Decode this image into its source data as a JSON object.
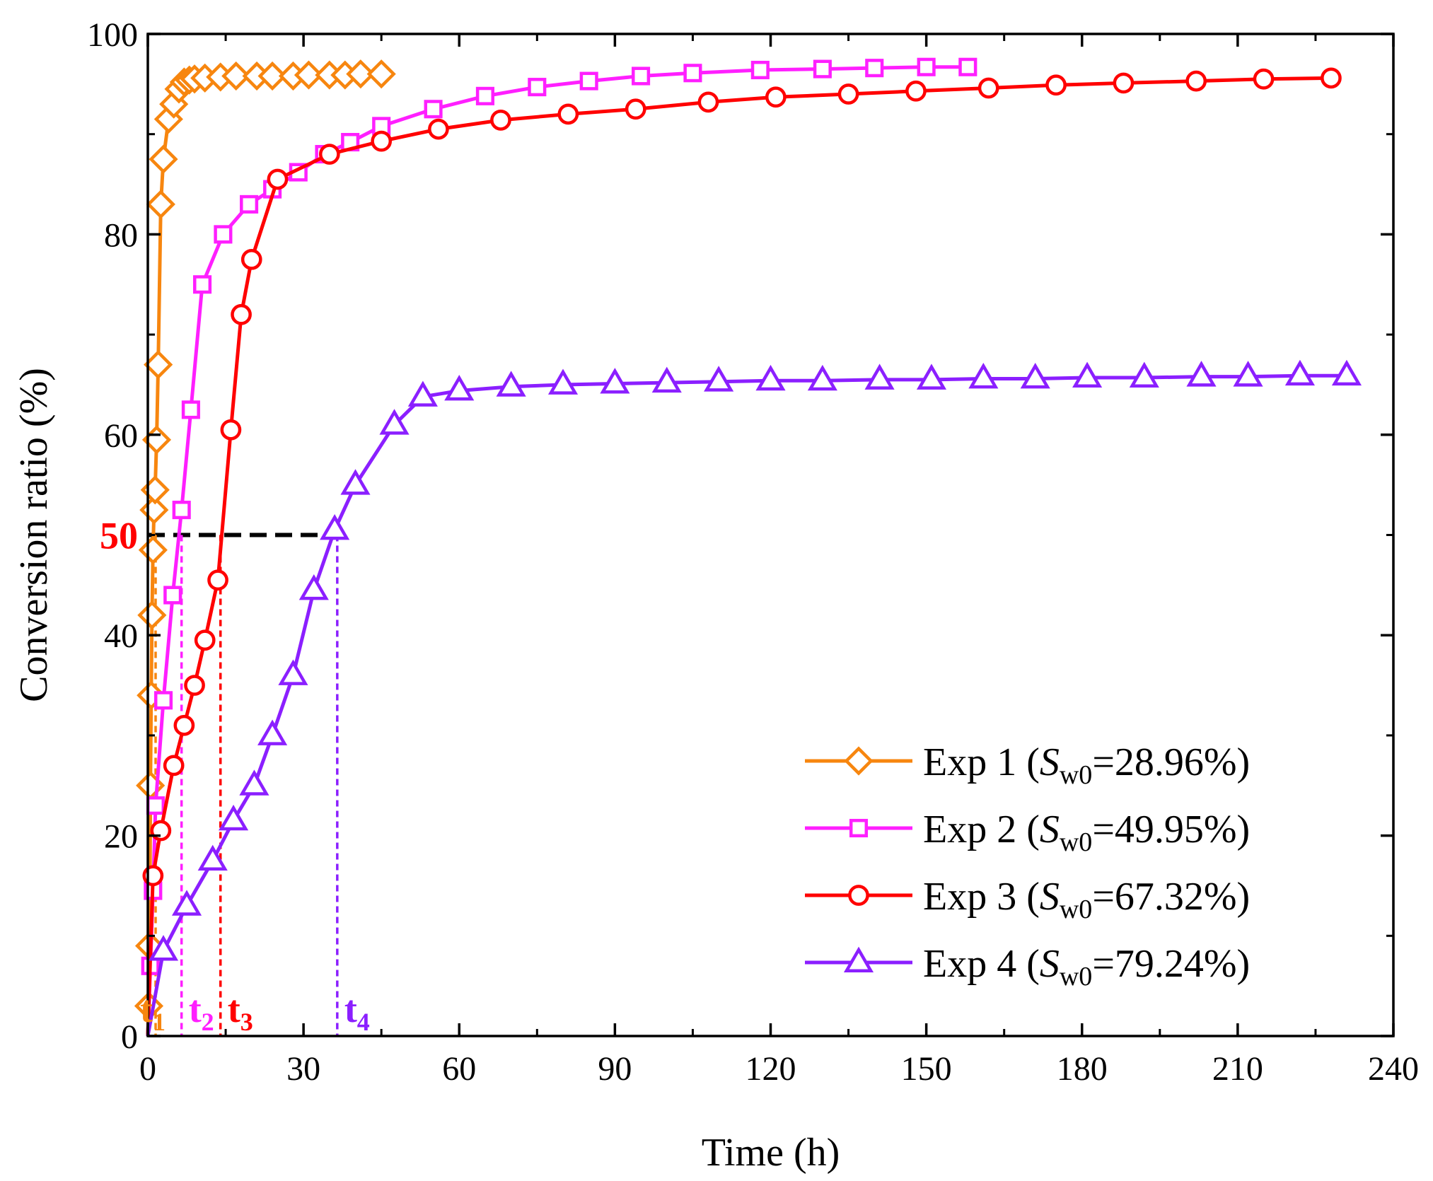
{
  "chart_data": {
    "type": "line",
    "xlabel": "Time (h)",
    "ylabel": "Conversion ratio (%)",
    "xlim": [
      0,
      240
    ],
    "ylim": [
      0,
      100
    ],
    "xticks": [
      0,
      30,
      60,
      90,
      120,
      150,
      180,
      210,
      240
    ],
    "yticks": [
      0,
      20,
      40,
      60,
      80,
      100
    ],
    "grid": false,
    "legend_position": "bottom-right",
    "series": [
      {
        "name": "Exp 1",
        "swlabel_main": "Exp 1 (",
        "sym": "S",
        "sub": "w0",
        "tail": "=28.96%)",
        "color": "#F7860F",
        "marker": "diamond",
        "x": [
          0,
          0.2,
          0.35,
          0.5,
          0.65,
          0.8,
          1.0,
          1.2,
          1.4,
          1.7,
          2.0,
          2.5,
          3.0,
          4.0,
          5.0,
          6.0,
          7.0,
          8.0,
          9.0,
          11.0,
          14.0,
          17.0,
          21.0,
          24.0,
          28.0,
          31.0,
          35.0,
          38.0,
          41.0,
          45.0
        ],
        "y": [
          0,
          3,
          9,
          25,
          34,
          42,
          48.5,
          52.5,
          54.5,
          59.5,
          67,
          83,
          87.5,
          91.5,
          93,
          94.5,
          95.2,
          95.4,
          95.5,
          95.6,
          95.7,
          95.8,
          95.8,
          95.8,
          95.8,
          95.9,
          95.9,
          95.9,
          96.0,
          96.0
        ]
      },
      {
        "name": "Exp 2",
        "swlabel_main": "Exp 2 (",
        "sym": "S",
        "sub": "w0",
        "tail": "=49.95%)",
        "color": "#FF1FFF",
        "marker": "square",
        "x": [
          0,
          0.5,
          1.0,
          1.5,
          3.0,
          4.8,
          6.5,
          8.3,
          10.5,
          14.5,
          19.5,
          24.0,
          29.0,
          34.0,
          39.0,
          45.0,
          55.0,
          65.0,
          75.0,
          85.0,
          95.0,
          105.0,
          118.0,
          130.0,
          140.0,
          150.0,
          158.0
        ],
        "y": [
          0,
          7,
          14.5,
          23,
          33.5,
          44,
          52.5,
          62.5,
          75,
          80,
          83,
          84.5,
          86.2,
          88,
          89.2,
          90.8,
          92.5,
          93.8,
          94.7,
          95.3,
          95.8,
          96.1,
          96.4,
          96.5,
          96.6,
          96.7,
          96.7
        ]
      },
      {
        "name": "Exp 3",
        "swlabel_main": "Exp 3 (",
        "sym": "S",
        "sub": "w0",
        "tail": "=67.32%)",
        "color": "#FF0000",
        "marker": "circle",
        "x": [
          0,
          1.0,
          2.5,
          5.0,
          7.0,
          9.0,
          11.0,
          13.5,
          16.0,
          18.0,
          20.0,
          25.0,
          35.0,
          45.0,
          56.0,
          68.0,
          81.0,
          94.0,
          108.0,
          121.0,
          135.0,
          148.0,
          162.0,
          175.0,
          188.0,
          202.0,
          215.0,
          228.0
        ],
        "y": [
          0,
          16,
          20.5,
          27,
          31,
          35,
          39.5,
          45.5,
          60.5,
          72,
          77.5,
          85.5,
          88,
          89.3,
          90.5,
          91.4,
          92,
          92.5,
          93.2,
          93.7,
          94.0,
          94.3,
          94.6,
          94.9,
          95.1,
          95.3,
          95.5,
          95.6
        ]
      },
      {
        "name": "Exp 4",
        "swlabel_main": "Exp 4 (",
        "sym": "S",
        "sub": "w0",
        "tail": "=79.24%)",
        "color": "#8B1FFF",
        "marker": "triangle",
        "x": [
          0,
          3.0,
          7.5,
          12.5,
          16.5,
          20.5,
          24.0,
          28.0,
          32.0,
          36.0,
          40.0,
          47.5,
          53.0,
          60.0,
          70.0,
          80.0,
          90.0,
          100.0,
          110.0,
          120.0,
          130.0,
          141.0,
          151.0,
          161.0,
          171.0,
          181.0,
          192.0,
          203.0,
          212.0,
          222.0,
          231.0
        ],
        "y": [
          0,
          8.5,
          13,
          17.5,
          21.5,
          25,
          30,
          36,
          44.5,
          50.5,
          55,
          61,
          63.8,
          64.4,
          64.8,
          65.0,
          65.1,
          65.2,
          65.3,
          65.4,
          65.4,
          65.5,
          65.5,
          65.6,
          65.6,
          65.7,
          65.7,
          65.8,
          65.8,
          65.9,
          65.9
        ]
      }
    ],
    "reference_line": {
      "y": 50,
      "x_start": 0,
      "x_end": 36.5,
      "label": "50",
      "label_color": "#FF0000",
      "color": "#000000"
    },
    "time_markers": [
      {
        "base": "t",
        "sub": "1",
        "x": 1.5,
        "color": "#F7860F"
      },
      {
        "base": "t",
        "sub": "2",
        "x": 6.5,
        "color": "#FF1FFF"
      },
      {
        "base": "t",
        "sub": "3",
        "x": 14.0,
        "color": "#FF0000"
      },
      {
        "base": "t",
        "sub": "4",
        "x": 36.5,
        "color": "#8B1FFF"
      }
    ]
  }
}
